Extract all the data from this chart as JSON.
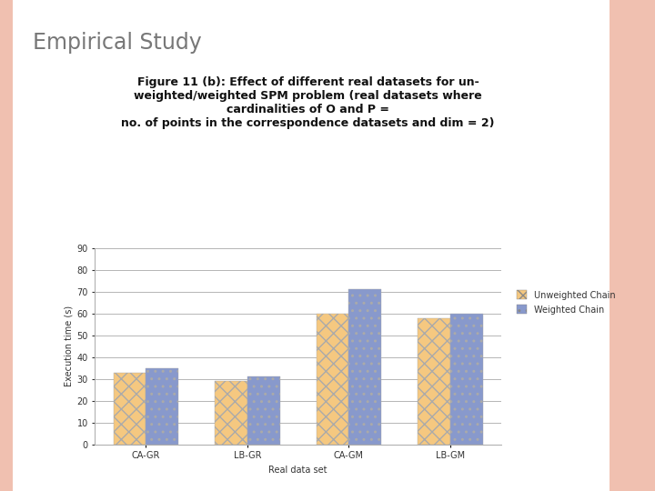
{
  "categories": [
    "CA-GR",
    "LB-GR",
    "CA-GM",
    "LB-GM"
  ],
  "unweighted": [
    33,
    29,
    60,
    58
  ],
  "weighted": [
    35,
    31,
    71,
    60
  ],
  "unweighted_color": "#F5C880",
  "weighted_color": "#8899CC",
  "unweighted_hatch": "xx",
  "weighted_hatch": "..",
  "xlabel": "Real data set",
  "ylabel": "Execution time (s)",
  "ylim": [
    0,
    90
  ],
  "yticks": [
    0,
    10,
    20,
    30,
    40,
    50,
    60,
    70,
    80,
    90
  ],
  "legend_unweighted": "Unweighted Chain",
  "legend_weighted": "Weighted Chain",
  "title_main": "Empirical Study",
  "title_sub_line1": "Figure 11 (b): Effect of different real datasets for un-",
  "title_sub_line2": "weighted/weighted SPM problem (real datasets where",
  "title_sub_line3": "cardinalities of O and P =",
  "title_sub_line4": "no. of points in the correspondence datasets and dim = 2)",
  "background_color": "#FFFFFF",
  "slide_bg": "#FFFFFF",
  "border_color": "#E8B8A8",
  "bar_width": 0.32,
  "grid_color": "#AAAAAA",
  "axis_fontsize": 7,
  "legend_fontsize": 7,
  "tick_fontsize": 7,
  "subtitle_fontsize": 9
}
